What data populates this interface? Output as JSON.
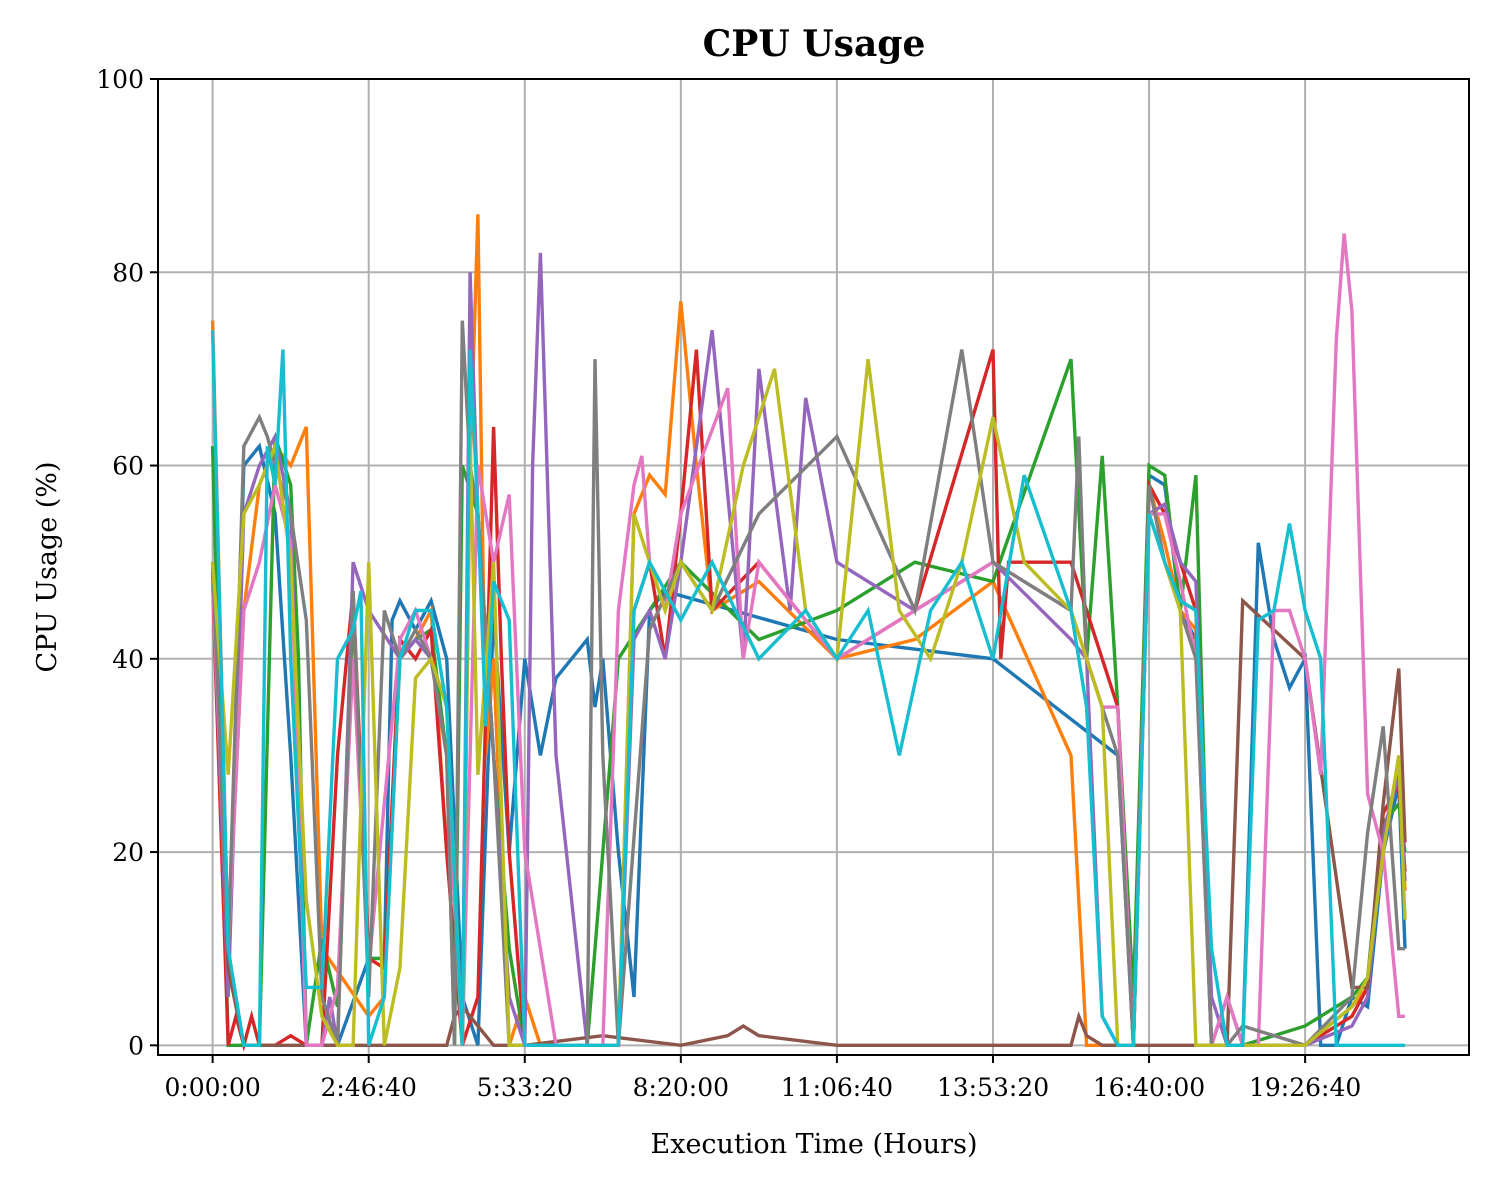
{
  "chart_data": {
    "type": "line",
    "title": "CPU Usage",
    "xlabel": "Execution Time (Hours)",
    "ylabel": "CPU Usage (%)",
    "xlim": [
      -3500,
      80500
    ],
    "ylim": [
      -1,
      100
    ],
    "x_ticks": [
      0,
      10000,
      20000,
      30000,
      40000,
      50000,
      60000,
      70000
    ],
    "x_tick_labels": [
      "0:00:00",
      "2:46:40",
      "5:33:20",
      "8:20:00",
      "11:06:40",
      "13:53:20",
      "16:40:00",
      "19:26:40"
    ],
    "y_ticks": [
      0,
      20,
      40,
      60,
      80,
      100
    ],
    "y_tick_labels": [
      "0",
      "20",
      "40",
      "60",
      "80",
      "100"
    ],
    "grid": true,
    "legend": "none",
    "series": [
      {
        "color": "#1f77b4",
        "x": [
          0,
          1000,
          2000,
          3000,
          4000,
          5000,
          6000,
          7000,
          8000,
          10000,
          11000,
          11500,
          12000,
          13000,
          14000,
          15000,
          16000,
          17000,
          18000,
          19000,
          20000,
          21000,
          22000,
          23000,
          24000,
          24500,
          25000,
          26000,
          27000,
          28000,
          29000,
          40000,
          50000,
          58000,
          59000,
          60000,
          61000,
          62000,
          63000,
          64000,
          65000,
          66000,
          67000,
          68000,
          69000,
          70000,
          71000,
          72000,
          73000,
          74000,
          75000,
          76000,
          76400
        ],
        "y": [
          49,
          5,
          60,
          62,
          55,
          30,
          0,
          0,
          0,
          9,
          9,
          44,
          46,
          43,
          46,
          40,
          5,
          0,
          45,
          20,
          40,
          30,
          38,
          40,
          42,
          35,
          40,
          20,
          5,
          45,
          47,
          42,
          40,
          30,
          0,
          59,
          58,
          45,
          42,
          0,
          5,
          0,
          52,
          42,
          37,
          40,
          0,
          0,
          5,
          4,
          20,
          27,
          10
        ]
      },
      {
        "color": "#ff7f0e",
        "x": [
          0,
          1000,
          2000,
          3000,
          4000,
          5000,
          6000,
          7000,
          10000,
          11000,
          12000,
          13000,
          14000,
          15000,
          16000,
          16500,
          17000,
          17500,
          18000,
          19000,
          20000,
          21000,
          22000,
          25000,
          26000,
          27000,
          28000,
          29000,
          30000,
          31000,
          32000,
          35000,
          40000,
          45000,
          50000,
          55000,
          56000,
          57000,
          58000,
          59000,
          60000,
          61000,
          62000,
          63000,
          64000,
          65000,
          66000,
          70000,
          73000,
          74000,
          75000,
          76000,
          76400
        ],
        "y": [
          75,
          10,
          45,
          58,
          62,
          60,
          64,
          10,
          3,
          5,
          40,
          42,
          45,
          20,
          0,
          60,
          86,
          30,
          40,
          0,
          5,
          0,
          0,
          0,
          0,
          55,
          59,
          57,
          77,
          60,
          45,
          48,
          40,
          42,
          48,
          30,
          0,
          0,
          0,
          0,
          58,
          52,
          45,
          43,
          0,
          0,
          0,
          0,
          4,
          6,
          22,
          28,
          16
        ]
      },
      {
        "color": "#2ca02c",
        "x": [
          0,
          1000,
          2000,
          3000,
          4000,
          5000,
          5500,
          6000,
          7000,
          8000,
          9000,
          10000,
          11000,
          12000,
          13000,
          14000,
          15000,
          15500,
          16000,
          17000,
          18000,
          19000,
          20000,
          22000,
          24000,
          25000,
          26000,
          28000,
          30000,
          35000,
          40000,
          45000,
          50000,
          55000,
          56000,
          57000,
          58000,
          59000,
          60000,
          61000,
          62000,
          63000,
          64000,
          65000,
          66000,
          70000,
          73000,
          74000,
          75000,
          76000,
          76400
        ],
        "y": [
          62,
          0,
          0,
          0,
          63,
          58,
          40,
          0,
          11,
          4,
          45,
          9,
          9,
          40,
          42,
          43,
          30,
          0,
          60,
          55,
          30,
          10,
          0,
          0,
          0,
          20,
          40,
          45,
          50,
          42,
          45,
          50,
          48,
          71,
          40,
          61,
          35,
          5,
          60,
          59,
          45,
          59,
          0,
          0,
          0,
          2,
          5,
          7,
          23,
          25,
          20
        ]
      },
      {
        "color": "#d62728",
        "x": [
          0,
          1000,
          1500,
          2000,
          2500,
          3000,
          4000,
          5000,
          6000,
          7000,
          8000,
          9000,
          10000,
          11000,
          12000,
          13000,
          14000,
          15000,
          16000,
          17000,
          18000,
          18500,
          19000,
          20000,
          21000,
          22000,
          25000,
          26000,
          27000,
          28000,
          29000,
          30000,
          31000,
          32000,
          35000,
          40000,
          45000,
          50000,
          50500,
          51000,
          55000,
          56000,
          57000,
          58000,
          59000,
          60000,
          61000,
          62000,
          63000,
          64000,
          65000,
          66000,
          70000,
          73000,
          74000,
          75000,
          76000,
          76400
        ],
        "y": [
          48,
          0,
          3,
          0,
          3,
          0,
          0,
          1,
          0,
          0,
          30,
          47,
          9,
          8,
          42,
          40,
          43,
          20,
          0,
          5,
          64,
          40,
          20,
          0,
          0,
          0,
          0,
          0,
          45,
          50,
          40,
          55,
          72,
          45,
          50,
          40,
          45,
          72,
          40,
          50,
          50,
          45,
          40,
          35,
          0,
          58,
          55,
          50,
          45,
          0,
          0,
          0,
          0,
          3,
          6,
          24,
          27,
          18
        ]
      },
      {
        "color": "#9467bd",
        "x": [
          0,
          1000,
          2000,
          3000,
          4000,
          5000,
          6000,
          7000,
          7500,
          8000,
          9000,
          10000,
          12000,
          13000,
          14000,
          15000,
          16000,
          16500,
          17000,
          18000,
          19000,
          20000,
          20500,
          21000,
          22000,
          24000,
          26000,
          27000,
          28000,
          29000,
          30000,
          32000,
          34000,
          35000,
          37000,
          38000,
          40000,
          45000,
          50000,
          55000,
          56000,
          57000,
          58000,
          59000,
          60000,
          61000,
          62000,
          63000,
          64000,
          65000,
          66000,
          70000,
          73000,
          74000,
          75000,
          76000,
          76400
        ],
        "y": [
          49,
          5,
          55,
          60,
          63,
          55,
          0,
          0,
          5,
          0,
          50,
          45,
          40,
          42,
          40,
          30,
          0,
          80,
          55,
          30,
          5,
          0,
          60,
          82,
          30,
          0,
          0,
          42,
          45,
          40,
          50,
          74,
          40,
          70,
          45,
          67,
          50,
          45,
          50,
          42,
          40,
          3,
          0,
          0,
          55,
          56,
          50,
          48,
          5,
          0,
          0,
          0,
          2,
          5,
          22,
          28,
          17
        ]
      },
      {
        "color": "#8c564b",
        "x": [
          0,
          1000,
          2000,
          4000,
          6000,
          8000,
          10000,
          15000,
          15500,
          16000,
          16500,
          17000,
          18000,
          20000,
          25000,
          30000,
          33000,
          34000,
          35000,
          40000,
          45000,
          50000,
          55000,
          55500,
          56000,
          57000,
          60000,
          65000,
          66000,
          70000,
          73000,
          74000,
          75000,
          76000,
          76400
        ],
        "y": [
          50,
          8,
          0,
          0,
          0,
          0,
          0,
          0,
          3,
          4,
          3,
          2,
          0,
          0,
          1,
          0,
          1,
          2,
          1,
          0,
          0,
          0,
          0,
          3,
          1,
          0,
          0,
          0,
          46,
          40,
          6,
          6,
          25,
          39,
          21
        ]
      },
      {
        "color": "#e377c2",
        "x": [
          0,
          1000,
          2000,
          3000,
          4000,
          5000,
          6000,
          7000,
          8000,
          9000,
          10000,
          12000,
          13000,
          14000,
          15000,
          16000,
          17000,
          18000,
          19000,
          20000,
          22000,
          25000,
          26000,
          27000,
          27500,
          28000,
          29000,
          30000,
          33000,
          34000,
          35000,
          40000,
          45000,
          50000,
          55000,
          56000,
          57000,
          58000,
          59000,
          60000,
          61000,
          62000,
          63000,
          64000,
          65000,
          66000,
          67000,
          68000,
          69000,
          70000,
          71000,
          72000,
          72500,
          73000,
          74000,
          75000,
          76000,
          76400
        ],
        "y": [
          48,
          10,
          45,
          50,
          58,
          52,
          0,
          0,
          6,
          40,
          8,
          42,
          45,
          40,
          30,
          0,
          60,
          50,
          57,
          20,
          0,
          0,
          45,
          58,
          61,
          50,
          45,
          55,
          68,
          40,
          50,
          40,
          45,
          50,
          45,
          40,
          35,
          35,
          0,
          55,
          55,
          48,
          40,
          0,
          5,
          0,
          0,
          45,
          45,
          40,
          28,
          73,
          84,
          76,
          26,
          20,
          3,
          3
        ]
      },
      {
        "color": "#7f7f7f",
        "x": [
          0,
          1000,
          2000,
          3000,
          3500,
          4000,
          5000,
          6000,
          7000,
          8000,
          9000,
          10000,
          11000,
          12000,
          13000,
          14000,
          15000,
          15500,
          16000,
          16500,
          17000,
          18000,
          19000,
          20000,
          22000,
          24000,
          24500,
          25000,
          26000,
          28000,
          30000,
          32000,
          35000,
          40000,
          45000,
          48000,
          50000,
          55000,
          55500,
          56000,
          57000,
          58000,
          59000,
          60000,
          61000,
          62000,
          63000,
          64000,
          65000,
          66000,
          70000,
          73000,
          74000,
          75000,
          76000,
          76400
        ],
        "y": [
          50,
          10,
          62,
          65,
          63,
          60,
          55,
          44,
          5,
          0,
          47,
          5,
          45,
          40,
          43,
          40,
          30,
          0,
          75,
          60,
          55,
          30,
          0,
          0,
          0,
          0,
          71,
          30,
          0,
          43,
          50,
          45,
          55,
          63,
          45,
          72,
          50,
          45,
          63,
          40,
          35,
          30,
          0,
          58,
          50,
          45,
          40,
          0,
          0,
          2,
          0,
          5,
          22,
          33,
          10,
          10
        ]
      },
      {
        "color": "#bcbd22",
        "x": [
          0,
          1000,
          2000,
          3000,
          4000,
          5000,
          6000,
          7000,
          8000,
          9000,
          10000,
          11000,
          12000,
          13000,
          14000,
          15000,
          16000,
          16500,
          17000,
          18000,
          19000,
          20000,
          22000,
          25000,
          26000,
          27000,
          28000,
          29000,
          30000,
          32000,
          34000,
          36000,
          38000,
          40000,
          42000,
          44000,
          46000,
          48000,
          50000,
          52000,
          55000,
          56000,
          57000,
          58000,
          59000,
          60000,
          61000,
          62000,
          63000,
          64000,
          65000,
          66000,
          70000,
          73000,
          74000,
          75000,
          76000,
          76400
        ],
        "y": [
          50,
          28,
          55,
          58,
          62,
          50,
          15,
          3,
          0,
          0,
          50,
          0,
          8,
          38,
          40,
          35,
          0,
          63,
          28,
          50,
          0,
          0,
          0,
          0,
          0,
          55,
          50,
          45,
          50,
          45,
          60,
          70,
          45,
          40,
          71,
          45,
          40,
          50,
          65,
          50,
          45,
          40,
          35,
          0,
          0,
          55,
          50,
          45,
          0,
          0,
          0,
          0,
          0,
          4,
          7,
          20,
          30,
          13
        ]
      },
      {
        "color": "#17becf",
        "x": [
          0,
          1000,
          2000,
          3000,
          3500,
          4000,
          4500,
          5000,
          6000,
          7000,
          8000,
          9000,
          9500,
          10000,
          11000,
          12000,
          13000,
          14000,
          15000,
          16000,
          16500,
          17000,
          17500,
          18000,
          19000,
          20000,
          22000,
          24000,
          25000,
          26000,
          27000,
          28000,
          30000,
          32000,
          35000,
          38000,
          40000,
          42000,
          44000,
          46000,
          48000,
          50000,
          52000,
          55000,
          56000,
          57000,
          58000,
          59000,
          60000,
          61000,
          62000,
          63000,
          64000,
          65000,
          66000,
          67000,
          68000,
          69000,
          70000,
          71000,
          72000,
          73000,
          74000,
          75000,
          76000,
          76400
        ],
        "y": [
          74,
          10,
          0,
          0,
          62,
          58,
          72,
          40,
          6,
          6,
          40,
          43,
          47,
          0,
          5,
          40,
          45,
          45,
          35,
          0,
          72,
          55,
          33,
          48,
          44,
          0,
          0,
          0,
          0,
          0,
          45,
          50,
          44,
          50,
          40,
          45,
          40,
          45,
          30,
          45,
          50,
          40,
          59,
          45,
          35,
          3,
          0,
          0,
          55,
          50,
          46,
          45,
          10,
          0,
          0,
          44,
          45,
          54,
          45,
          40,
          0,
          0,
          0,
          0,
          0,
          0
        ]
      }
    ]
  }
}
